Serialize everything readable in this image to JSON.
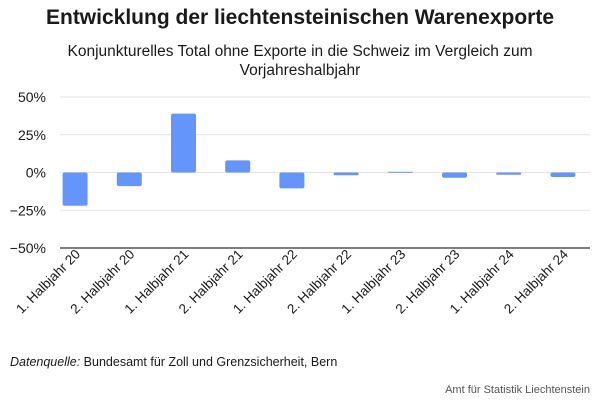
{
  "chart_data": {
    "type": "bar",
    "title": "Entwicklung der liechtensteinischen Warenexporte",
    "subtitle": "Konjunkturelles Total ohne Exporte in die Schweiz im Vergleich zum Vorjahreshalbjahr",
    "categories": [
      "1. Halbjahr 20",
      "2. Halbjahr 20",
      "1. Halbjahr 21",
      "2. Halbjahr 21",
      "1. Halbjahr 22",
      "2. Halbjahr 22",
      "1. Halbjahr 23",
      "2. Halbjahr 23",
      "1. Halbjahr 24",
      "2. Halbjahr 24"
    ],
    "values": [
      -0.22,
      -0.09,
      0.39,
      0.08,
      -0.105,
      -0.018,
      0.005,
      -0.035,
      -0.015,
      -0.03
    ],
    "ylim": [
      -0.5,
      0.5
    ],
    "yticks": [
      0.5,
      0.25,
      0,
      -0.25,
      -0.5
    ],
    "ytick_labels": [
      "50%",
      "25%",
      "0%",
      "−25%",
      "−50%"
    ],
    "xlabel": "",
    "ylabel": "",
    "grid": true,
    "bar_color": "#6495fa"
  },
  "source": {
    "label": "Datenquelle:",
    "text": " Bundesamt für Zoll und Grenzsicherheit, Bern"
  },
  "credit": "Amt für Statistik Liechtenstein"
}
